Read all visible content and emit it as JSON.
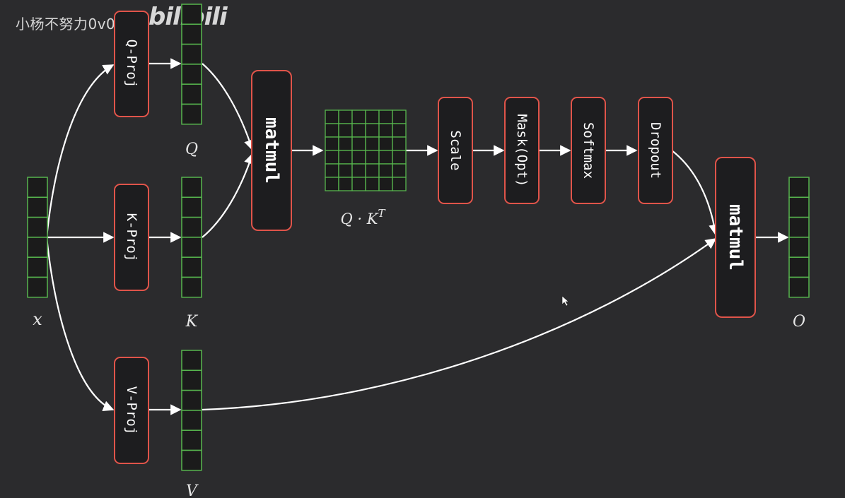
{
  "watermark": {
    "author": "小杨不努力0v0",
    "logo_text": "bilibili",
    "logo_name": "bilibili-logo"
  },
  "colors": {
    "background": "#2b2b2d",
    "box_fill": "#1d1d1f",
    "box_border": "#e0544a",
    "vector_cell": "#1b1b1b",
    "vector_border": "#57b64e",
    "arrow": "#ffffff",
    "label": "#e6e6e6"
  },
  "ops": {
    "q_proj": "Q-Proj",
    "k_proj": "K-Proj",
    "v_proj": "V-Proj",
    "matmul_1": "matmul",
    "scale": "Scale",
    "mask": "Mask(Opt)",
    "softmax": "Softmax",
    "dropout": "Dropout",
    "matmul_2": "matmul"
  },
  "labels": {
    "x": "x",
    "q": "Q",
    "k": "K",
    "v": "V",
    "o": "O",
    "qk": "Q · K",
    "qk_sup": "T"
  },
  "vectors": {
    "cell_count": 6
  },
  "score_matrix": {
    "rows": 6,
    "cols": 6
  }
}
